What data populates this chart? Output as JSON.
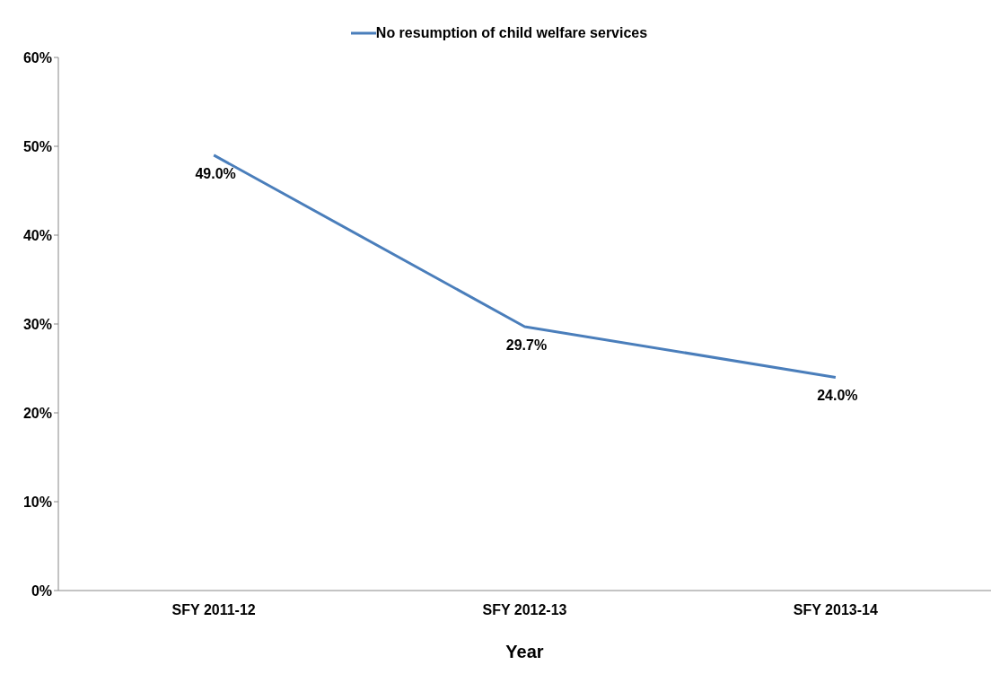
{
  "chart_data": {
    "type": "line",
    "xlabel": "Year",
    "categories": [
      "SFY 2011-12",
      "SFY 2012-13",
      "SFY 2013-14"
    ],
    "series": [
      {
        "name": "No resumption of child welfare services",
        "color": "#4a7ebb",
        "values": [
          49.0,
          29.7,
          24.0
        ],
        "value_labels": [
          "49.0%",
          "29.7%",
          "24.0%"
        ]
      }
    ],
    "ylim": [
      0,
      60
    ],
    "yticks": [
      {
        "value": 0,
        "label": "0%"
      },
      {
        "value": 10,
        "label": "10%"
      },
      {
        "value": 20,
        "label": "20%"
      },
      {
        "value": 30,
        "label": "30%"
      },
      {
        "value": 40,
        "label": "40%"
      },
      {
        "value": 50,
        "label": "50%"
      },
      {
        "value": 60,
        "label": "60%"
      }
    ],
    "grid": false,
    "legend": "top",
    "marker": "none",
    "line_style": "solid"
  }
}
